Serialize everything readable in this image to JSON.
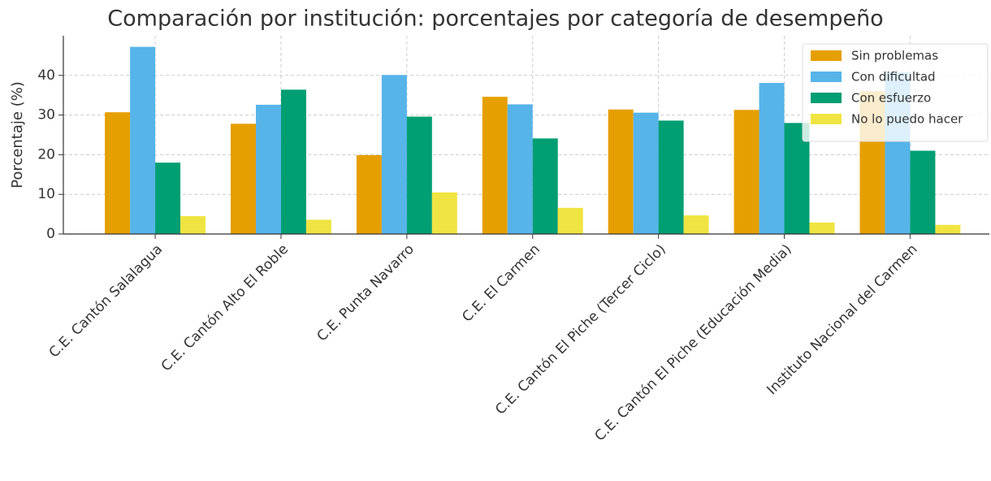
{
  "chart_data": {
    "type": "bar",
    "title": "Comparación por institución: porcentajes por categoría de desempeño",
    "ylabel": "Porcentaje (%)",
    "categories": [
      "C.E. Cantón Salalagua",
      "C.E. Cantón Alto El Roble",
      "C.E. Punta Navarro",
      "C.E. El Carmen",
      "C.E. Cantón El Piche (Tercer Ciclo)",
      "C.E. Cantón El Piche (Educación Media)",
      "Instituto Nacional del Carmen"
    ],
    "series": [
      {
        "name": "Sin problemas",
        "color": "#E69F00",
        "values": [
          30.7,
          27.8,
          19.9,
          34.6,
          31.4,
          31.3,
          36.0
        ]
      },
      {
        "name": "Con dificultad",
        "color": "#56B4E9",
        "values": [
          47.2,
          32.6,
          40.1,
          32.7,
          30.6,
          38.1,
          40.8
        ]
      },
      {
        "name": "Con esfuerzo",
        "color": "#009E73",
        "values": [
          18.0,
          36.4,
          29.6,
          24.1,
          28.6,
          28.0,
          21.0
        ]
      },
      {
        "name": "No lo puedo hacer",
        "color": "#F0E442",
        "values": [
          4.5,
          3.6,
          10.5,
          6.6,
          4.7,
          2.9,
          2.3
        ]
      }
    ],
    "ylim": [
      0,
      50
    ],
    "yticks": [
      0,
      10,
      20,
      30,
      40
    ],
    "grid": true,
    "legend": "upper right"
  }
}
